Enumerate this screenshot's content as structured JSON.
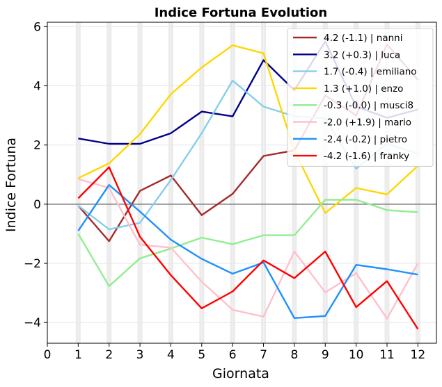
{
  "chart_data": {
    "type": "line",
    "title": "Indice Fortuna Evolution",
    "xlabel": "Giornata",
    "ylabel": "Indice Fortuna",
    "xlim": [
      0,
      12.6
    ],
    "ylim": [
      -4.7,
      6.15
    ],
    "x_ticks": [
      0,
      1,
      2,
      3,
      4,
      5,
      6,
      7,
      8,
      9,
      10,
      11,
      12
    ],
    "y_ticks": [
      -4,
      -2,
      0,
      2,
      4,
      6
    ],
    "y_tick_labels": [
      "−4",
      "−2",
      "0",
      "2",
      "4",
      "6"
    ],
    "grid": true,
    "zero_line": true,
    "shaded_columns_at": [
      1,
      2,
      3,
      4,
      5,
      6,
      7,
      8,
      9,
      10,
      11,
      12
    ],
    "legend_position": "top-right",
    "x": [
      1,
      2,
      3,
      4,
      5,
      6,
      7,
      8,
      9,
      10,
      11,
      12
    ],
    "series": [
      {
        "name": "4.2 (-1.1) | nanni",
        "color": "#a52a2a",
        "values": [
          -0.05,
          -1.25,
          0.45,
          0.97,
          -0.37,
          0.35,
          1.63,
          1.82,
          3.68,
          3.0,
          5.4,
          4.2
        ]
      },
      {
        "name": "3.2 (+0.3) | luca",
        "color": "#00008b",
        "values": [
          2.22,
          2.04,
          2.04,
          2.4,
          3.13,
          2.97,
          4.87,
          3.85,
          5.5,
          3.3,
          2.92,
          3.2
        ]
      },
      {
        "name": "1.7 (-0.4) | emiliano",
        "color": "#87ceeb",
        "values": [
          -0.05,
          -0.85,
          -0.63,
          0.82,
          2.4,
          4.18,
          3.3,
          2.97,
          2.9,
          1.2,
          2.05,
          1.7
        ]
      },
      {
        "name": "1.3 (+1.0) | enzo",
        "color": "#ffd700",
        "values": [
          0.88,
          1.38,
          2.37,
          3.72,
          4.62,
          5.37,
          5.1,
          1.8,
          -0.3,
          0.55,
          0.33,
          1.3
        ]
      },
      {
        "name": "-0.3 (-0.0) | musci8",
        "color": "#90ee90",
        "values": [
          -1.0,
          -2.77,
          -1.83,
          -1.5,
          -1.13,
          -1.35,
          -1.05,
          -1.05,
          0.15,
          0.15,
          -0.2,
          -0.27
        ]
      },
      {
        "name": "-2.0 (+1.9) | mario",
        "color": "#ffc0cb",
        "values": [
          0.85,
          0.55,
          -1.37,
          -1.47,
          -2.62,
          -3.57,
          -3.8,
          -1.6,
          -2.98,
          -2.33,
          -3.87,
          -2.0
        ]
      },
      {
        "name": "-2.4 (-0.2) | pietro",
        "color": "#1e90ff",
        "values": [
          -0.9,
          0.65,
          -0.25,
          -1.2,
          -1.85,
          -2.35,
          -1.97,
          -3.85,
          -3.78,
          -2.05,
          -2.2,
          -2.38
        ]
      },
      {
        "name": "-4.2 (-1.6) | franky",
        "color": "#ff0000",
        "values": [
          0.2,
          1.25,
          -1.1,
          -2.4,
          -3.52,
          -2.95,
          -1.9,
          -2.5,
          -1.6,
          -3.48,
          -2.6,
          -4.22
        ]
      }
    ]
  }
}
